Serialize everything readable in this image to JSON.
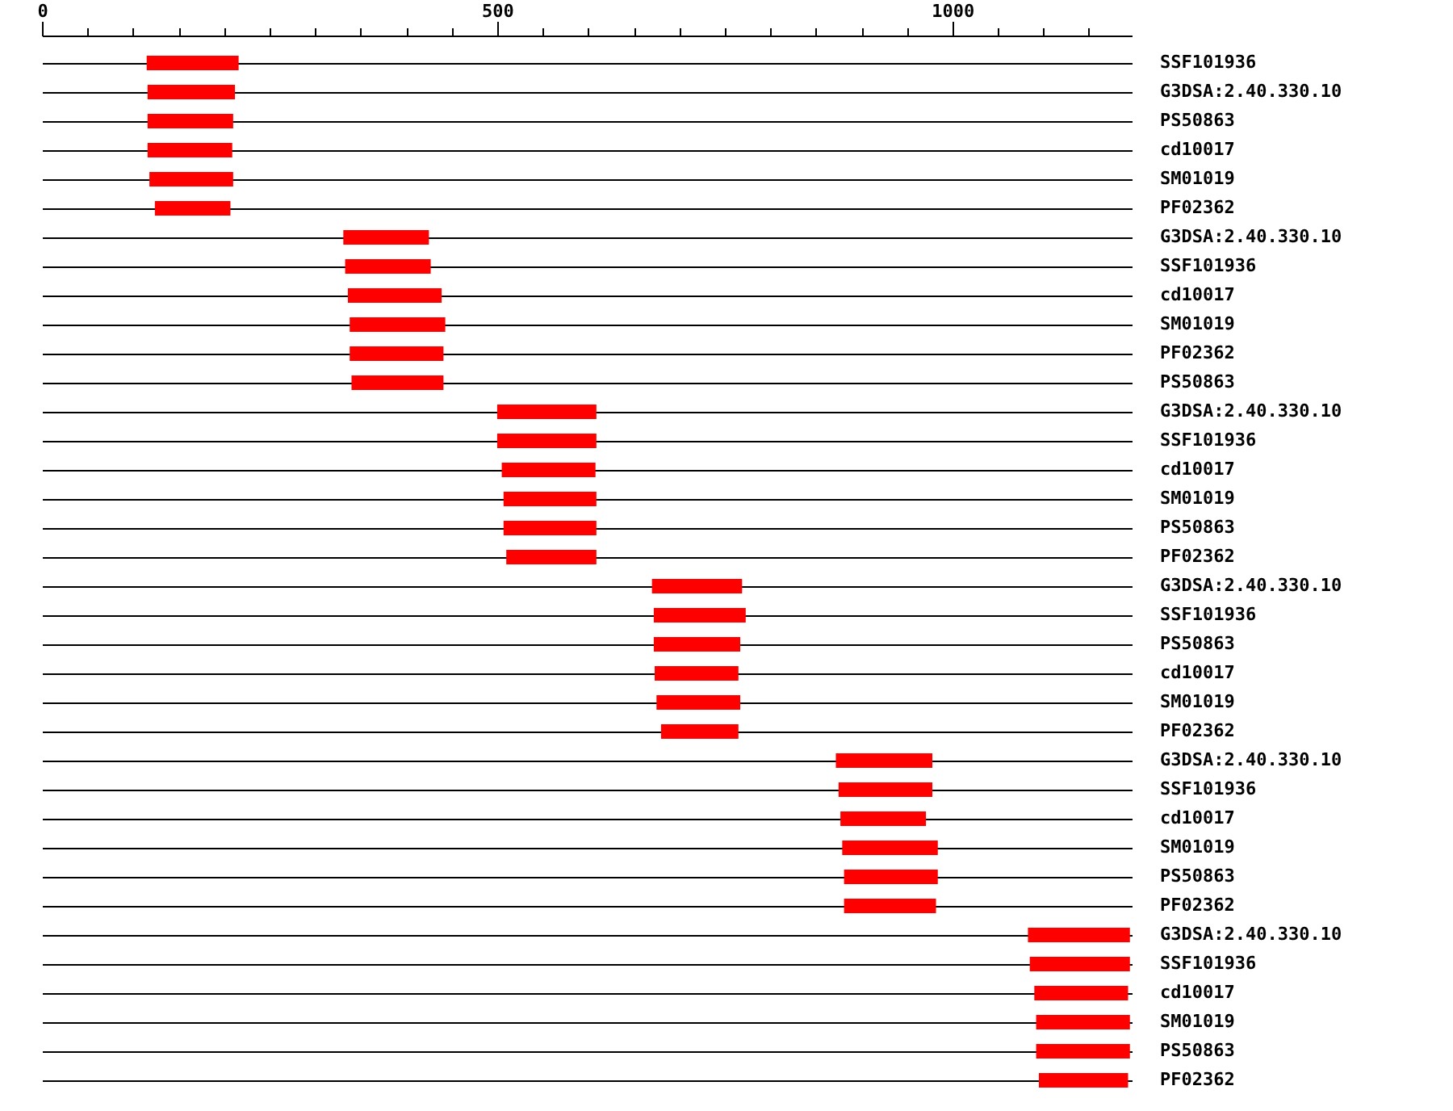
{
  "chart_data": {
    "type": "bar",
    "orientation": "horizontal",
    "categories": [
      "SSF101936",
      "G3DSA:2.40.330.10",
      "PS50863",
      "cd10017",
      "SM01019",
      "PF02362",
      "G3DSA:2.40.330.10",
      "SSF101936",
      "cd10017",
      "SM01019",
      "PF02362",
      "PS50863",
      "G3DSA:2.40.330.10",
      "SSF101936",
      "cd10017",
      "SM01019",
      "PS50863",
      "PF02362",
      "G3DSA:2.40.330.10",
      "SSF101936",
      "PS50863",
      "cd10017",
      "SM01019",
      "PF02362",
      "G3DSA:2.40.330.10",
      "SSF101936",
      "cd10017",
      "SM01019",
      "PS50863",
      "PF02362",
      "G3DSA:2.40.330.10",
      "SSF101936",
      "cd10017",
      "SM01019",
      "PS50863",
      "PF02362"
    ],
    "base": [
      115,
      116,
      116,
      116,
      118,
      124,
      331,
      333,
      336,
      338,
      338,
      340,
      500,
      500,
      505,
      507,
      507,
      510,
      670,
      672,
      672,
      673,
      675,
      680,
      872,
      875,
      877,
      879,
      881,
      881,
      1083,
      1085,
      1090,
      1092,
      1092,
      1095
    ],
    "values": [
      101,
      96,
      94,
      93,
      92,
      83,
      94,
      94,
      103,
      105,
      103,
      101,
      109,
      109,
      103,
      102,
      102,
      99,
      99,
      101,
      95,
      92,
      92,
      85,
      106,
      103,
      94,
      105,
      103,
      101,
      112,
      110,
      103,
      103,
      103,
      98
    ],
    "color": "#ff0000",
    "xlim": [
      0,
      1197
    ],
    "xticks": [
      0,
      {
        "value": 50,
        "label": null
      },
      {
        "value": 100,
        "label": null
      },
      {
        "value": 150,
        "label": null
      },
      {
        "value": 200,
        "label": null
      },
      {
        "value": 250,
        "label": null
      },
      {
        "value": 300,
        "label": null
      },
      {
        "value": 350,
        "label": null
      },
      {
        "value": 400,
        "label": null
      },
      {
        "value": 450,
        "label": null
      },
      500,
      {
        "value": 550,
        "label": null
      },
      {
        "value": 600,
        "label": null
      },
      {
        "value": 650,
        "label": null
      },
      {
        "value": 700,
        "label": null
      },
      {
        "value": 750,
        "label": null
      },
      {
        "value": 800,
        "label": null
      },
      {
        "value": 850,
        "label": null
      },
      {
        "value": 900,
        "label": null
      },
      {
        "value": 950,
        "label": null
      },
      1000,
      {
        "value": 1050,
        "label": null
      },
      {
        "value": 1100,
        "label": null
      },
      {
        "value": 1150,
        "label": null
      }
    ],
    "grid": "y"
  }
}
